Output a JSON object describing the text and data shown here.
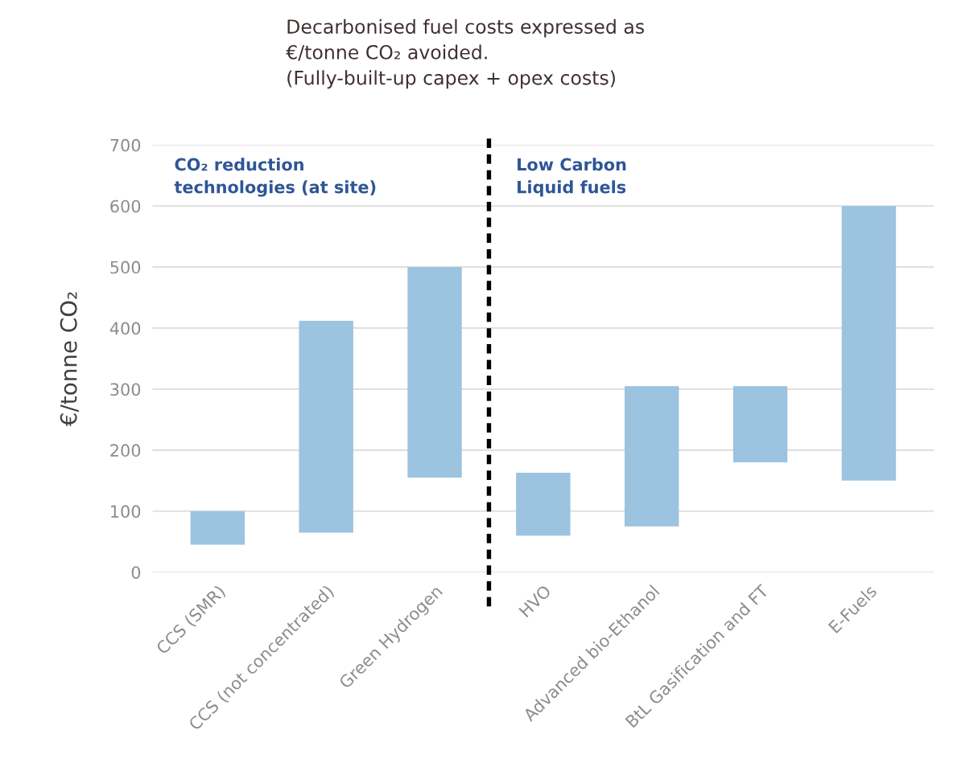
{
  "chart_data": {
    "type": "bar",
    "title": "Decarbonised fuel costs expressed as\n€/tonne CO₂ avoided.\n(Fully-built-up capex + opex costs)",
    "ylabel": "€/tonne CO₂",
    "categories": [
      "CCS (SMR)",
      "CCS (not concentrated)",
      "Green Hydrogen",
      "HVO",
      "Advanced bio-Ethanol",
      "BtL Gasification and FT",
      "E-Fuels"
    ],
    "base": [
      45,
      65,
      155,
      60,
      75,
      180,
      150
    ],
    "values": [
      55,
      347,
      345,
      103,
      230,
      125,
      450
    ],
    "color": "#9cc3e0",
    "ylim": [
      0,
      700
    ],
    "yticks": [
      0,
      100,
      200,
      300,
      400,
      500,
      600,
      700
    ],
    "grid": "y",
    "annotations": [
      "CO₂ reduction\ntechnologies (at site)",
      "Low Carbon\nLiquid fuels"
    ]
  }
}
